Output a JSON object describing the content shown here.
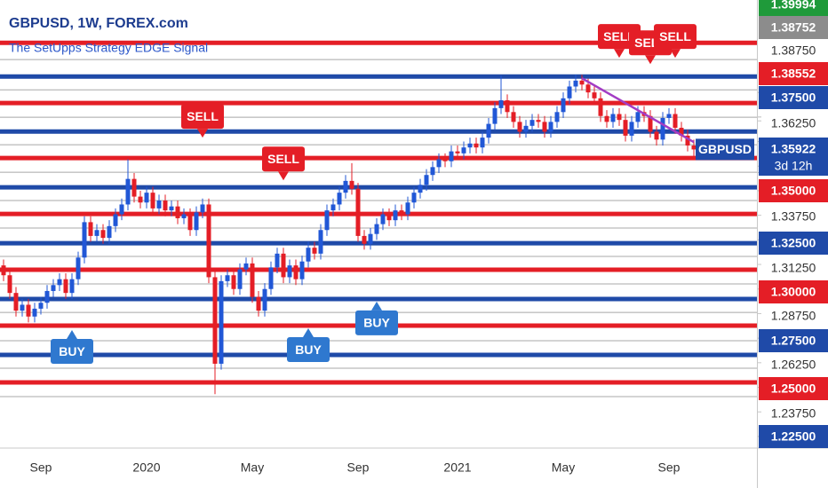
{
  "chart_data": {
    "type": "candlestick",
    "title": "GBPUSD, 1W, FOREX.com",
    "subtitle": "The SetUpps Strategy EDGE Signal",
    "symbol_label": "GBPUSD",
    "countdown": "3d 12h",
    "categories": [
      null,
      null,
      null,
      null,
      null,
      null,
      "Sep",
      null,
      null,
      null,
      null,
      null,
      null,
      null,
      null,
      null,
      null,
      null,
      null,
      null,
      null,
      null,
      null,
      "2020",
      null,
      null,
      null,
      null,
      null,
      null,
      null,
      null,
      null,
      null,
      null,
      null,
      null,
      null,
      null,
      null,
      "May",
      null,
      null,
      null,
      null,
      null,
      null,
      null,
      null,
      null,
      null,
      null,
      null,
      null,
      null,
      null,
      null,
      "Sep",
      null,
      null,
      null,
      null,
      null,
      null,
      null,
      null,
      null,
      null,
      null,
      null,
      null,
      null,
      null,
      "2021",
      null,
      null,
      null,
      null,
      null,
      null,
      null,
      null,
      null,
      null,
      null,
      null,
      null,
      null,
      null,
      null,
      "May",
      null,
      null,
      null,
      null,
      null,
      null,
      null,
      null,
      null,
      null,
      null,
      null,
      null,
      null,
      null,
      null,
      "Sep",
      null,
      null,
      null,
      null
    ],
    "open": [
      1.312,
      1.307,
      1.298,
      1.289,
      1.292,
      1.286,
      1.29,
      1.293,
      1.299,
      1.302,
      1.305,
      1.298,
      1.305,
      1.316,
      1.334,
      1.327,
      1.33,
      1.326,
      1.332,
      1.338,
      1.343,
      1.356,
      1.347,
      1.344,
      1.349,
      1.341,
      1.345,
      1.34,
      1.342,
      1.336,
      1.338,
      1.33,
      1.339,
      1.343,
      1.306,
      1.262,
      1.304,
      1.307,
      1.3,
      1.31,
      1.313,
      1.296,
      1.289,
      1.3,
      1.311,
      1.318,
      1.306,
      1.312,
      1.305,
      1.314,
      1.321,
      1.318,
      1.33,
      1.34,
      1.343,
      1.349,
      1.355,
      1.351,
      1.327,
      1.323,
      1.328,
      1.333,
      1.338,
      1.335,
      1.34,
      1.338,
      1.344,
      1.349,
      1.353,
      1.358,
      1.362,
      1.366,
      1.365,
      1.37,
      1.369,
      1.372,
      1.374,
      1.372,
      1.377,
      1.384,
      1.392,
      1.396,
      1.39,
      1.385,
      1.38,
      1.383,
      1.386,
      1.385,
      1.38,
      1.385,
      1.39,
      1.397,
      1.403,
      1.406,
      1.404,
      1.4,
      1.397,
      1.388,
      1.385,
      1.389,
      1.386,
      1.378,
      1.385,
      1.39,
      1.388,
      1.38,
      1.376,
      1.387,
      1.389,
      1.382,
      1.378,
      1.373
    ],
    "high": [
      1.315,
      1.31,
      1.301,
      1.295,
      1.295,
      1.293,
      1.296,
      1.302,
      1.305,
      1.308,
      1.308,
      1.308,
      1.319,
      1.337,
      1.337,
      1.333,
      1.333,
      1.335,
      1.341,
      1.346,
      1.366,
      1.359,
      1.35,
      1.352,
      1.352,
      1.348,
      1.348,
      1.345,
      1.345,
      1.341,
      1.341,
      1.342,
      1.346,
      1.346,
      1.309,
      1.307,
      1.31,
      1.31,
      1.313,
      1.316,
      1.316,
      1.299,
      1.303,
      1.314,
      1.321,
      1.321,
      1.315,
      1.315,
      1.317,
      1.324,
      1.324,
      1.333,
      1.343,
      1.346,
      1.352,
      1.358,
      1.364,
      1.354,
      1.33,
      1.331,
      1.336,
      1.341,
      1.341,
      1.343,
      1.343,
      1.347,
      1.352,
      1.356,
      1.361,
      1.365,
      1.369,
      1.369,
      1.373,
      1.373,
      1.375,
      1.377,
      1.377,
      1.38,
      1.387,
      1.395,
      1.4085,
      1.399,
      1.393,
      1.388,
      1.386,
      1.389,
      1.389,
      1.388,
      1.388,
      1.393,
      1.4,
      1.406,
      1.409,
      1.409,
      1.407,
      1.403,
      1.4,
      1.391,
      1.392,
      1.392,
      1.389,
      1.388,
      1.393,
      1.393,
      1.391,
      1.383,
      1.39,
      1.392,
      1.392,
      1.385,
      1.381,
      1.376
    ],
    "low": [
      1.304,
      1.295,
      1.286,
      1.286,
      1.283,
      1.283,
      1.287,
      1.29,
      1.296,
      1.299,
      1.295,
      1.295,
      1.302,
      1.313,
      1.324,
      1.324,
      1.323,
      1.323,
      1.329,
      1.335,
      1.34,
      1.344,
      1.341,
      1.341,
      1.338,
      1.338,
      1.337,
      1.337,
      1.333,
      1.333,
      1.327,
      1.327,
      1.336,
      1.303,
      1.2465,
      1.259,
      1.301,
      1.297,
      1.297,
      1.307,
      1.293,
      1.286,
      1.286,
      1.297,
      1.308,
      1.303,
      1.303,
      1.302,
      1.302,
      1.311,
      1.315,
      1.315,
      1.327,
      1.337,
      1.34,
      1.346,
      1.348,
      1.324,
      1.32,
      1.32,
      1.325,
      1.33,
      1.332,
      1.332,
      1.335,
      1.335,
      1.341,
      1.346,
      1.35,
      1.355,
      1.359,
      1.362,
      1.362,
      1.366,
      1.366,
      1.369,
      1.369,
      1.369,
      1.374,
      1.381,
      1.389,
      1.387,
      1.382,
      1.377,
      1.377,
      1.38,
      1.382,
      1.377,
      1.377,
      1.382,
      1.387,
      1.394,
      1.4,
      1.401,
      1.397,
      1.394,
      1.385,
      1.382,
      1.382,
      1.383,
      1.375,
      1.375,
      1.382,
      1.385,
      1.377,
      1.373,
      1.373,
      1.384,
      1.379,
      1.375,
      1.37,
      1.366
    ],
    "close": [
      1.307,
      1.298,
      1.289,
      1.292,
      1.286,
      1.29,
      1.293,
      1.299,
      1.302,
      1.305,
      1.298,
      1.305,
      1.316,
      1.334,
      1.327,
      1.33,
      1.326,
      1.332,
      1.338,
      1.343,
      1.356,
      1.347,
      1.344,
      1.349,
      1.341,
      1.345,
      1.34,
      1.342,
      1.336,
      1.338,
      1.33,
      1.339,
      1.343,
      1.306,
      1.262,
      1.304,
      1.307,
      1.3,
      1.31,
      1.313,
      1.296,
      1.289,
      1.3,
      1.311,
      1.318,
      1.306,
      1.312,
      1.305,
      1.314,
      1.321,
      1.318,
      1.33,
      1.34,
      1.343,
      1.349,
      1.355,
      1.351,
      1.327,
      1.323,
      1.328,
      1.333,
      1.338,
      1.335,
      1.34,
      1.338,
      1.344,
      1.349,
      1.353,
      1.358,
      1.362,
      1.366,
      1.365,
      1.37,
      1.369,
      1.372,
      1.374,
      1.372,
      1.377,
      1.384,
      1.392,
      1.396,
      1.39,
      1.385,
      1.38,
      1.383,
      1.386,
      1.385,
      1.38,
      1.385,
      1.39,
      1.397,
      1.403,
      1.406,
      1.404,
      1.4,
      1.397,
      1.388,
      1.385,
      1.389,
      1.386,
      1.378,
      1.385,
      1.39,
      1.388,
      1.38,
      1.376,
      1.387,
      1.389,
      1.382,
      1.378,
      1.373,
      1.371
    ],
    "up_color": "#2157d6",
    "down_color": "#e41e26",
    "ylim": [
      1.2191,
      1.447
    ],
    "yticks": [
      1.39994,
      1.38752,
      {
        "value": 1.3875,
        "label": "1.38750"
      },
      1.38552,
      {
        "value": 1.375,
        "label": "1.37500"
      },
      {
        "value": 1.3625,
        "label": "1.36250"
      },
      1.35922,
      {
        "value": 1.35,
        "label": "1.35000"
      },
      {
        "value": 1.3375,
        "label": "1.33750"
      },
      {
        "value": 1.325,
        "label": "1.32500"
      },
      {
        "value": 1.3125,
        "label": "1.31250"
      },
      {
        "value": 1.3,
        "label": "1.30000"
      },
      {
        "value": 1.2875,
        "label": "1.28750"
      },
      {
        "value": 1.275,
        "label": "1.27500"
      },
      {
        "value": 1.2625,
        "label": "1.26250"
      },
      {
        "value": 1.25,
        "label": "1.25000"
      },
      {
        "value": 1.2375,
        "label": "1.23750"
      },
      {
        "value": 1.225,
        "label": "1.22500"
      }
    ],
    "ytick_colors": [
      "#1f9a3a",
      "#8c8c8c",
      null,
      "#e41e26",
      "#1f4aa8",
      null,
      "#1f4aa8",
      "#e41e26",
      null,
      "#1f4aa8",
      null,
      "#e41e26",
      null,
      "#1f4aa8",
      null,
      "#e41e26",
      null,
      "#1f4aa8"
    ],
    "levels": [
      {
        "value": 1.4252,
        "color": "#e41e26",
        "width": 5
      },
      {
        "value": 1.4167,
        "color": "#a8a8a8",
        "width": 1
      },
      {
        "value": 1.4081,
        "color": "#1f4aa8",
        "width": 5
      },
      {
        "value": 1.4013,
        "color": "#a8a8a8",
        "width": 1
      },
      {
        "value": 1.3946,
        "color": "#e41e26",
        "width": 5
      },
      {
        "value": 1.3874,
        "color": "#a8a8a8",
        "width": 1
      },
      {
        "value": 1.3801,
        "color": "#1f4aa8",
        "width": 5
      },
      {
        "value": 1.3734,
        "color": "#a8a8a8",
        "width": 1
      },
      {
        "value": 1.3666,
        "color": "#e41e26",
        "width": 5
      },
      {
        "value": 1.3594,
        "color": "#a8a8a8",
        "width": 1
      },
      {
        "value": 1.3517,
        "color": "#1f4aa8",
        "width": 5
      },
      {
        "value": 1.345,
        "color": "#a8a8a8",
        "width": 1
      },
      {
        "value": 1.3382,
        "color": "#e41e26",
        "width": 5
      },
      {
        "value": 1.331,
        "color": "#a8a8a8",
        "width": 1
      },
      {
        "value": 1.3233,
        "color": "#1f4aa8",
        "width": 5
      },
      {
        "value": 1.3166,
        "color": "#a8a8a8",
        "width": 1
      },
      {
        "value": 1.3098,
        "color": "#e41e26",
        "width": 5
      },
      {
        "value": 1.3026,
        "color": "#a8a8a8",
        "width": 1
      },
      {
        "value": 1.2949,
        "color": "#1f4aa8",
        "width": 5
      },
      {
        "value": 1.2881,
        "color": "#a8a8a8",
        "width": 1
      },
      {
        "value": 1.2814,
        "color": "#e41e26",
        "width": 5
      },
      {
        "value": 1.2737,
        "color": "#a8a8a8",
        "width": 1
      },
      {
        "value": 1.2665,
        "color": "#1f4aa8",
        "width": 5
      },
      {
        "value": 1.2597,
        "color": "#a8a8a8",
        "width": 1
      },
      {
        "value": 1.2525,
        "color": "#e41e26",
        "width": 5
      },
      {
        "value": 1.2453,
        "color": "#a8a8a8",
        "width": 1
      }
    ],
    "trendline": {
      "color": "#a33cc4",
      "x": [
        93,
        111
      ],
      "y": [
        1.4072,
        1.3747
      ]
    },
    "signals": [
      {
        "text": "BUY",
        "index": 11,
        "price": 1.2791,
        "color": "#2f78cf"
      },
      {
        "text": "SELL",
        "index": 32,
        "price": 1.377,
        "color": "#e41e26"
      },
      {
        "text": "SELL",
        "index": 45,
        "price": 1.3553,
        "color": "#e41e26"
      },
      {
        "text": "BUY",
        "index": 49,
        "price": 1.28,
        "color": "#2f78cf"
      },
      {
        "text": "BUY",
        "index": 60,
        "price": 1.2936,
        "color": "#2f78cf"
      },
      {
        "text": "SELL",
        "index": 99,
        "price": 1.4176,
        "color": "#e41e26"
      },
      {
        "text": "SELL",
        "index": 104,
        "price": 1.4144,
        "color": "#e41e26"
      },
      {
        "text": "SELL",
        "index": 108,
        "price": 1.4176,
        "color": "#e41e26"
      }
    ]
  }
}
